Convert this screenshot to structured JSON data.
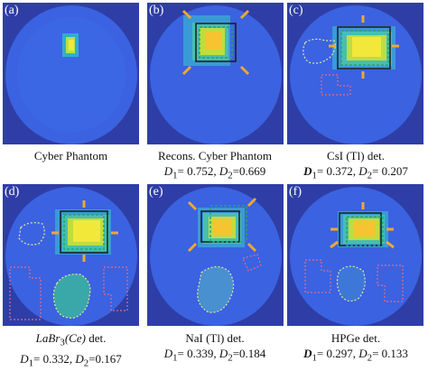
{
  "panels": [
    {
      "label": "(a)",
      "title": "Cyber Phantom",
      "metrics": ""
    },
    {
      "label": "(b)",
      "title": "Recons. Cyber Phantom",
      "d1": "0.752",
      "d2": "0.669"
    },
    {
      "label": "(c)",
      "title": "CsI (Tl) det.",
      "d1": "0.372",
      "d2": "0.207"
    },
    {
      "label": "(d)",
      "title_prefix": "LaBr",
      "title_sub": "3",
      "title_mid": "(Ce)",
      "title_suffix": " det.",
      "d1": "0.332",
      "d2": "0.167"
    },
    {
      "label": "(e)",
      "title": "NaI (Tl) det.",
      "d1": "0.339",
      "d2": "0.184"
    },
    {
      "label": "(f)",
      "title": "HPGe det.",
      "d1": "0.297",
      "d2": "0.133"
    }
  ],
  "metric_labels": {
    "d": "D",
    "one": "1",
    "two": "2",
    "eq": "= ",
    "sep": ", "
  },
  "colors": {
    "background_dark": "#2e3ea6",
    "field_blue": "#3b62e0",
    "hot_yellow": "#f2e83a",
    "hot_orange": "#f5b52a",
    "box_black": "#1a1a1a",
    "box_green": "#29a36a",
    "arrow": "#f0a830",
    "outline_dotted": "#e8e8a0",
    "outline_pink": "#e06c8c"
  }
}
